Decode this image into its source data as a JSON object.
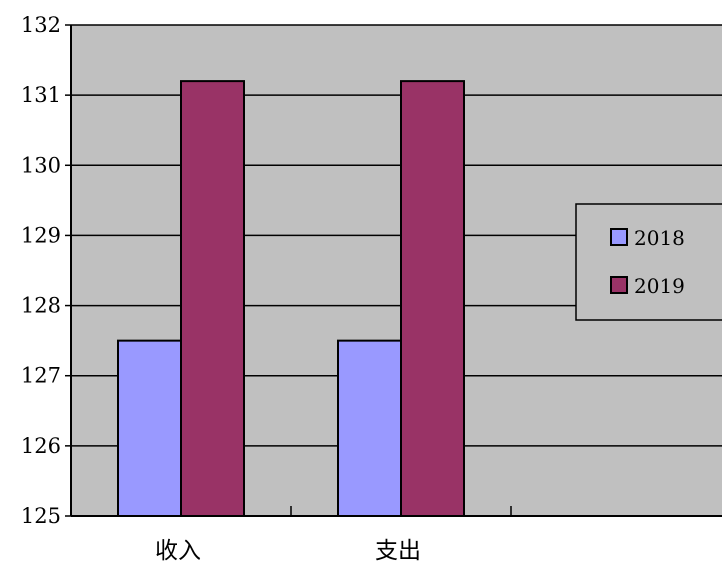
{
  "chart_data": {
    "type": "bar",
    "categories": [
      "收入",
      "支出"
    ],
    "series": [
      {
        "name": "2018",
        "values": [
          127.5,
          127.5
        ]
      },
      {
        "name": "2019",
        "values": [
          131.2,
          131.2
        ]
      }
    ],
    "title": "",
    "xlabel": "",
    "ylabel": "",
    "ylim": [
      125,
      132
    ],
    "yticks": [
      "125",
      "126",
      "127",
      "128",
      "129",
      "130",
      "131",
      "132"
    ],
    "grid": true,
    "legend_position": "right",
    "colors": {
      "plot_background": "#c0c0c0",
      "series": [
        "#9999ff",
        "#993366"
      ],
      "gridline": "#000000"
    }
  }
}
